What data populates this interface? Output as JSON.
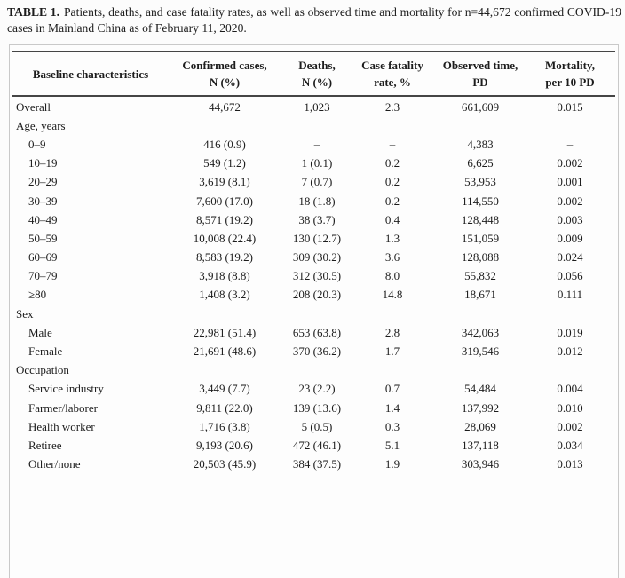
{
  "title": {
    "label": "TABLE 1.",
    "caption": "Patients, deaths, and case fatality rates, as well as observed time and mortality for n=44,672 confirmed COVID-19 cases in Mainland China as of February 11, 2020."
  },
  "colors": {
    "text": "#1c1c1c",
    "rule": "#454545",
    "frame_border": "#c9c9c9",
    "background": "#fcfcfc"
  },
  "table": {
    "columns": [
      {
        "id": "baseline-characteristics",
        "line1": "Baseline characteristics",
        "line2": ""
      },
      {
        "id": "confirmed-cases",
        "line1": "Confirmed cases,",
        "line2": "N (%)"
      },
      {
        "id": "deaths",
        "line1": "Deaths,",
        "line2": "N (%)"
      },
      {
        "id": "case-fatality-rate",
        "line1": "Case fatality",
        "line2": "rate, %"
      },
      {
        "id": "observed-time",
        "line1": "Observed time,",
        "line2": "PD"
      },
      {
        "id": "mortality",
        "line1": "Mortality,",
        "line2": "per 10 PD"
      }
    ],
    "rows": [
      {
        "label": "Overall",
        "section": false,
        "indent": false,
        "values": [
          "44,672",
          "1,023",
          "2.3",
          "661,609",
          "0.015"
        ]
      },
      {
        "label": "Age, years",
        "section": true,
        "indent": false,
        "values": [
          "",
          "",
          "",
          "",
          ""
        ]
      },
      {
        "label": "0–9",
        "section": false,
        "indent": true,
        "values": [
          "416 (0.9)",
          "–",
          "–",
          "4,383",
          "–"
        ]
      },
      {
        "label": "10–19",
        "section": false,
        "indent": true,
        "values": [
          "549 (1.2)",
          "1 (0.1)",
          "0.2",
          "6,625",
          "0.002"
        ]
      },
      {
        "label": "20–29",
        "section": false,
        "indent": true,
        "values": [
          "3,619 (8.1)",
          "7 (0.7)",
          "0.2",
          "53,953",
          "0.001"
        ]
      },
      {
        "label": "30–39",
        "section": false,
        "indent": true,
        "values": [
          "7,600 (17.0)",
          "18 (1.8)",
          "0.2",
          "114,550",
          "0.002"
        ]
      },
      {
        "label": "40–49",
        "section": false,
        "indent": true,
        "values": [
          "8,571 (19.2)",
          "38 (3.7)",
          "0.4",
          "128,448",
          "0.003"
        ]
      },
      {
        "label": "50–59",
        "section": false,
        "indent": true,
        "values": [
          "10,008 (22.4)",
          "130 (12.7)",
          "1.3",
          "151,059",
          "0.009"
        ]
      },
      {
        "label": "60–69",
        "section": false,
        "indent": true,
        "values": [
          "8,583 (19.2)",
          "309 (30.2)",
          "3.6",
          "128,088",
          "0.024"
        ]
      },
      {
        "label": "70–79",
        "section": false,
        "indent": true,
        "values": [
          "3,918 (8.8)",
          "312 (30.5)",
          "8.0",
          "55,832",
          "0.056"
        ]
      },
      {
        "label": "≥80",
        "section": false,
        "indent": true,
        "values": [
          "1,408 (3.2)",
          "208 (20.3)",
          "14.8",
          "18,671",
          "0.111"
        ]
      },
      {
        "label": "Sex",
        "section": true,
        "indent": false,
        "values": [
          "",
          "",
          "",
          "",
          ""
        ]
      },
      {
        "label": "Male",
        "section": false,
        "indent": true,
        "values": [
          "22,981 (51.4)",
          "653 (63.8)",
          "2.8",
          "342,063",
          "0.019"
        ]
      },
      {
        "label": "Female",
        "section": false,
        "indent": true,
        "values": [
          "21,691 (48.6)",
          "370 (36.2)",
          "1.7",
          "319,546",
          "0.012"
        ]
      },
      {
        "label": "Occupation",
        "section": true,
        "indent": false,
        "values": [
          "",
          "",
          "",
          "",
          ""
        ]
      },
      {
        "label": "Service industry",
        "section": false,
        "indent": true,
        "values": [
          "3,449 (7.7)",
          "23 (2.2)",
          "0.7",
          "54,484",
          "0.004"
        ]
      },
      {
        "label": "Farmer/laborer",
        "section": false,
        "indent": true,
        "values": [
          "9,811 (22.0)",
          "139 (13.6)",
          "1.4",
          "137,992",
          "0.010"
        ]
      },
      {
        "label": "Health worker",
        "section": false,
        "indent": true,
        "values": [
          "1,716 (3.8)",
          "5 (0.5)",
          "0.3",
          "28,069",
          "0.002"
        ]
      },
      {
        "label": "Retiree",
        "section": false,
        "indent": true,
        "values": [
          "9,193 (20.6)",
          "472 (46.1)",
          "5.1",
          "137,118",
          "0.034"
        ]
      },
      {
        "label": "Other/none",
        "section": false,
        "indent": true,
        "values": [
          "20,503 (45.9)",
          "384 (37.5)",
          "1.9",
          "303,946",
          "0.013"
        ]
      }
    ]
  }
}
